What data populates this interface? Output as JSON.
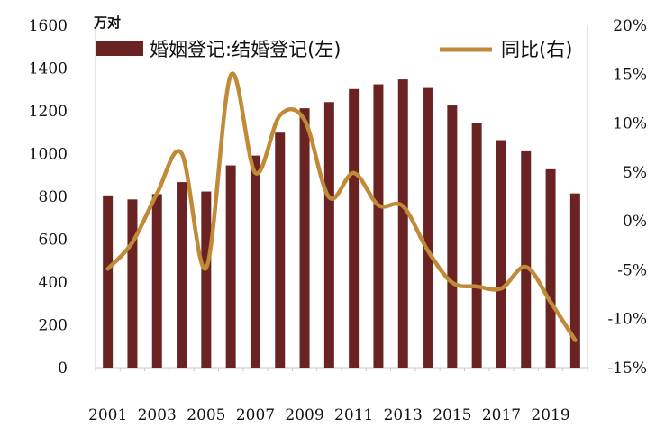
{
  "chart_data": {
    "type": "bar+line",
    "unit_label": "万对",
    "legend_position": "top",
    "grid": false,
    "x_tick_labels": [
      "2001",
      "2003",
      "2005",
      "2007",
      "2009",
      "2011",
      "2013",
      "2015",
      "2017",
      "2019"
    ],
    "categories": [
      "2001",
      "2002",
      "2003",
      "2004",
      "2005",
      "2006",
      "2007",
      "2008",
      "2009",
      "2010",
      "2011",
      "2012",
      "2013",
      "2014",
      "2015",
      "2016",
      "2017",
      "2018",
      "2019",
      "2020"
    ],
    "y_left": {
      "min": 0,
      "max": 1600,
      "ticks": [
        "0",
        "200",
        "400",
        "600",
        "800",
        "1000",
        "1200",
        "1400",
        "1600"
      ]
    },
    "y_right": {
      "min": -15,
      "max": 20,
      "ticks": [
        "-15%",
        "-10%",
        "-5%",
        "0%",
        "5%",
        "10%",
        "15%",
        "20%"
      ]
    },
    "series": [
      {
        "name": "婚姻登记:结婚登记(左)",
        "type": "bar",
        "axis": "left",
        "color": "#6b2222",
        "values": [
          805,
          786,
          811,
          867,
          823,
          945,
          991,
          1098,
          1212,
          1241,
          1302,
          1324,
          1347,
          1307,
          1225,
          1142,
          1063,
          1011,
          927,
          814
        ]
      },
      {
        "name": "同比(右)",
        "type": "line",
        "axis": "right",
        "color": "#c08a38",
        "values": [
          -4.9,
          -2.2,
          2.8,
          6.9,
          -4.8,
          14.9,
          4.9,
          10.8,
          10.3,
          2.4,
          4.9,
          1.6,
          1.5,
          -3.0,
          -6.3,
          -6.7,
          -6.9,
          -4.7,
          -8.3,
          -12.2
        ]
      }
    ]
  }
}
